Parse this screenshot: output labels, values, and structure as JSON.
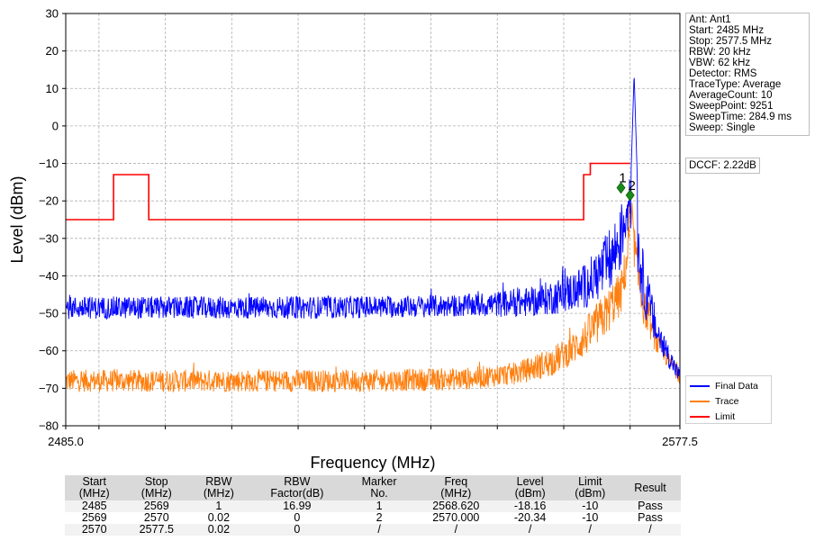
{
  "chart_data": {
    "type": "line",
    "xlabel": "Frequency (MHz)",
    "ylabel": "Level (dBm)",
    "xlim": [
      2485.0,
      2577.5
    ],
    "ylim": [
      -80,
      30
    ],
    "x_tick_labels": [
      "2485.0",
      "2577.5"
    ],
    "y_ticks": [
      30,
      20,
      10,
      0,
      -10,
      -20,
      -30,
      -40,
      -50,
      -60,
      -70,
      -80
    ],
    "y_tick_labels": [
      "30",
      "20",
      "10",
      "0",
      "−10",
      "−20",
      "−30",
      "−40",
      "−50",
      "−60",
      "−70",
      "−80"
    ],
    "x_minor_ticks": [
      2490,
      2500,
      2510,
      2520,
      2530,
      2540,
      2550,
      2560,
      2570
    ],
    "grid": true,
    "legend_position": "lower-right-outside",
    "series": [
      {
        "name": "Final Data",
        "color": "#0000ff",
        "style": "noise",
        "x": [
          2485.0,
          2520,
          2545,
          2555,
          2560,
          2563,
          2565,
          2567,
          2568.6,
          2569.5,
          2570.0,
          2570.5,
          2571.2,
          2572,
          2574,
          2576,
          2577.5
        ],
        "y": [
          -48.5,
          -48.5,
          -48,
          -47,
          -45,
          -43,
          -40,
          -36,
          -30,
          -22,
          -20,
          -24,
          -32,
          -42,
          -55,
          -62,
          -67
        ],
        "spread": [
          3,
          3,
          3,
          4,
          5,
          6,
          7,
          9,
          9,
          8,
          7,
          8,
          9,
          8,
          5,
          3,
          2
        ],
        "peaks": [
          {
            "x": 2570.6,
            "y": 14.5
          }
        ]
      },
      {
        "name": "Trace",
        "color": "#ff7f0e",
        "style": "noise",
        "x": [
          2485.0,
          2530,
          2545,
          2553,
          2558,
          2561,
          2563,
          2565,
          2566.5,
          2567.5,
          2568.6,
          2569.5,
          2570.0,
          2570.5,
          2571.2,
          2572,
          2574,
          2576,
          2577.5
        ],
        "y": [
          -68,
          -68,
          -67.5,
          -66,
          -63,
          -60,
          -57,
          -53,
          -50,
          -47,
          -45,
          -36,
          -25,
          -30,
          -40,
          -48,
          -58,
          -63,
          -67
        ],
        "spread": [
          3,
          3,
          3,
          3,
          4,
          4,
          5,
          6,
          6,
          6,
          6,
          6,
          6,
          6,
          6,
          5,
          3,
          2,
          2
        ],
        "peaks": []
      },
      {
        "name": "Limit",
        "color": "#ff0000",
        "style": "step",
        "x": [
          2485.0,
          2492.2,
          2492.2,
          2497.5,
          2497.5,
          2563.0,
          2563.0,
          2564.0,
          2564.0,
          2570.0,
          2570.0
        ],
        "y": [
          -25,
          -25,
          -13,
          -13,
          -25,
          -25,
          -13,
          -13,
          -10,
          -10,
          -10
        ]
      }
    ],
    "markers": [
      {
        "label": "1",
        "x": 2568.62,
        "y": -16.5
      },
      {
        "label": "2",
        "x": 2570.0,
        "y": -18.5
      }
    ]
  },
  "info_box": [
    "Ant: Ant1",
    "Start: 2485 MHz",
    "Stop: 2577.5 MHz",
    "RBW: 20 kHz",
    "VBW: 62 kHz",
    "Detector: RMS",
    "TraceType: Average",
    "AverageCount: 10",
    "SweepPoint: 9251",
    "SweepTime: 284.9 ms",
    "Sweep: Single"
  ],
  "dccf": "DCCF: 2.22dB",
  "table": {
    "headers": [
      [
        "Start",
        "(MHz)"
      ],
      [
        "Stop",
        "(MHz)"
      ],
      [
        "RBW",
        "(MHz)"
      ],
      [
        "RBW",
        "Factor(dB)"
      ],
      [
        "Marker",
        "No."
      ],
      [
        "Freq",
        "(MHz)"
      ],
      [
        "Level",
        "(dBm)"
      ],
      [
        "Limit",
        "(dBm)"
      ],
      [
        "Result",
        ""
      ]
    ],
    "rows": [
      [
        "2485",
        "2569",
        "1",
        "16.99",
        "1",
        "2568.620",
        "-18.16",
        "-10",
        "Pass"
      ],
      [
        "2569",
        "2570",
        "0.02",
        "0",
        "2",
        "2570.000",
        "-20.34",
        "-10",
        "Pass"
      ],
      [
        "2570",
        "2577.5",
        "0.02",
        "0",
        "/",
        "/",
        "/",
        "/",
        "/"
      ]
    ]
  }
}
